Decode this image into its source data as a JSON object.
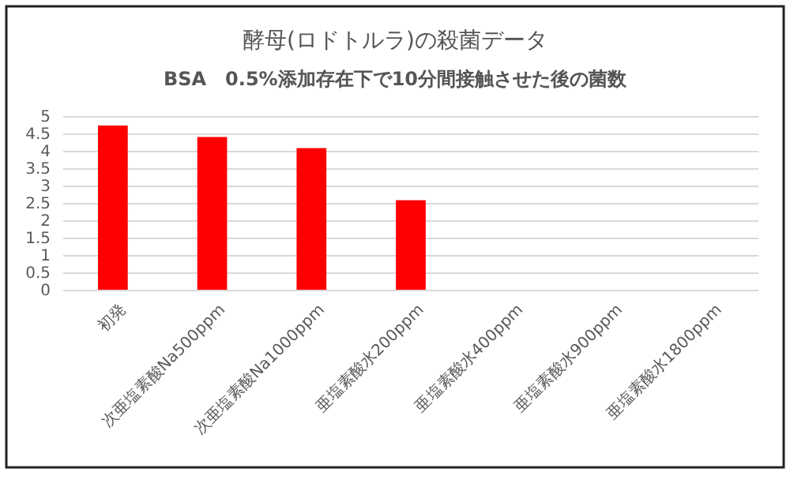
{
  "chart_data": {
    "type": "bar",
    "title": "酵母(ロドトルラ)の殺菌データ",
    "subtitle": "BSA　0.5%添加存在下で10分間接触させた後の菌数",
    "categories": [
      "初発",
      "次亜塩素酸Na500ppm",
      "次亜塩素酸Na1000ppm",
      "亜塩素酸水200ppm",
      "亜塩素酸水400ppm",
      "亜塩素酸水900ppm",
      "亜塩素酸水1800ppm"
    ],
    "values": [
      4.75,
      4.42,
      4.1,
      2.6,
      0,
      0,
      0
    ],
    "color": "#ff0000",
    "ylim": [
      0,
      5
    ],
    "yticks": [
      0,
      0.5,
      1,
      1.5,
      2,
      2.5,
      3,
      3.5,
      4,
      4.5,
      5
    ],
    "grid": "y"
  }
}
